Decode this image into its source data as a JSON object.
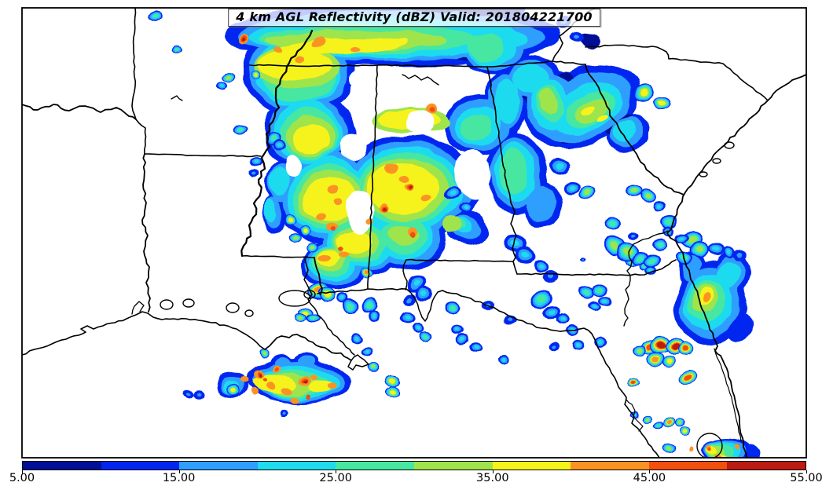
{
  "title": "4 km AGL Reflectivity (dBZ) Valid: 201804221700",
  "variable": "4 km AGL Reflectivity",
  "units": "dBZ",
  "valid_time": "201804221700",
  "colorbar": {
    "tick_labels": [
      "5.00",
      "15.00",
      "25.00",
      "35.00",
      "45.00",
      "55.00"
    ],
    "levels": [
      5,
      10,
      15,
      20,
      25,
      30,
      35,
      40,
      45,
      50,
      55
    ],
    "colors": [
      "#001097",
      "#0425F0",
      "#2F9FFF",
      "#1FDBEE",
      "#47E7A2",
      "#9FE44C",
      "#F6F31B",
      "#FB9323",
      "#F24E0E",
      "#BB1B10"
    ]
  },
  "map": {
    "background": "#FFFFFF",
    "frame_color": "#000000",
    "boundary_color": "#000000"
  }
}
